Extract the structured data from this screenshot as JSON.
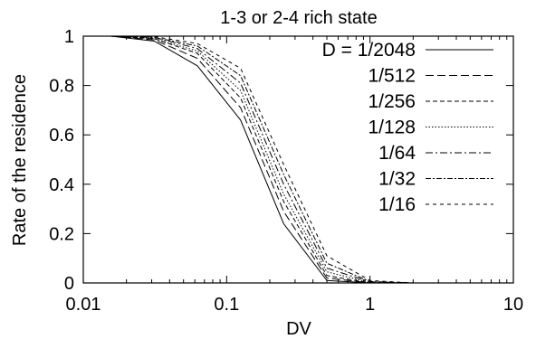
{
  "chart_data": {
    "type": "line",
    "title": "1-3 or 2-4 rich state",
    "xlabel": "DV",
    "ylabel": "Rate of the residence",
    "xscale": "log",
    "xlim": [
      0.01,
      10
    ],
    "ylim": [
      0,
      1
    ],
    "x_ticks": [
      0.01,
      0.1,
      1,
      10
    ],
    "x_tick_labels": [
      "0.01",
      "0.1",
      "1",
      "10"
    ],
    "y_ticks": [
      0,
      0.2,
      0.4,
      0.6,
      0.8,
      1
    ],
    "y_tick_labels": [
      "0",
      "0.2",
      "0.4",
      "0.6",
      "0.8",
      "1"
    ],
    "grid": false,
    "legend_position": "top-right",
    "x": [
      0.0156,
      0.03125,
      0.0625,
      0.125,
      0.25,
      0.5,
      1,
      2,
      4,
      8
    ],
    "series": [
      {
        "name": "D = 1/2048",
        "dash": "",
        "values": [
          1.0,
          0.98,
          0.88,
          0.66,
          0.24,
          0.01,
          0.0,
          0.0,
          0.0,
          0.0
        ]
      },
      {
        "name": "1/512",
        "dash": "9,4",
        "values": [
          1.0,
          0.985,
          0.91,
          0.71,
          0.29,
          0.02,
          0.0,
          0.0,
          0.0,
          0.0
        ]
      },
      {
        "name": "1/256",
        "dash": "5,3",
        "values": [
          1.0,
          0.99,
          0.93,
          0.75,
          0.33,
          0.03,
          0.0,
          0.0,
          0.0,
          0.0
        ]
      },
      {
        "name": "1/128",
        "dash": "1.5,2",
        "values": [
          1.0,
          0.99,
          0.94,
          0.78,
          0.36,
          0.045,
          0.002,
          0.0,
          0.0,
          0.0
        ]
      },
      {
        "name": "1/64",
        "dash": "8,3,2,3",
        "values": [
          1.0,
          0.995,
          0.95,
          0.81,
          0.4,
          0.06,
          0.004,
          0.0,
          0.0,
          0.0
        ]
      },
      {
        "name": "1/32",
        "dash": "6,2,2,2",
        "values": [
          1.0,
          0.995,
          0.96,
          0.84,
          0.44,
          0.08,
          0.006,
          0.0,
          0.0,
          0.0
        ]
      },
      {
        "name": "1/16",
        "dash": "4,4",
        "values": [
          1.0,
          0.998,
          0.97,
          0.87,
          0.48,
          0.11,
          0.01,
          0.0,
          0.0,
          0.0
        ]
      }
    ]
  }
}
